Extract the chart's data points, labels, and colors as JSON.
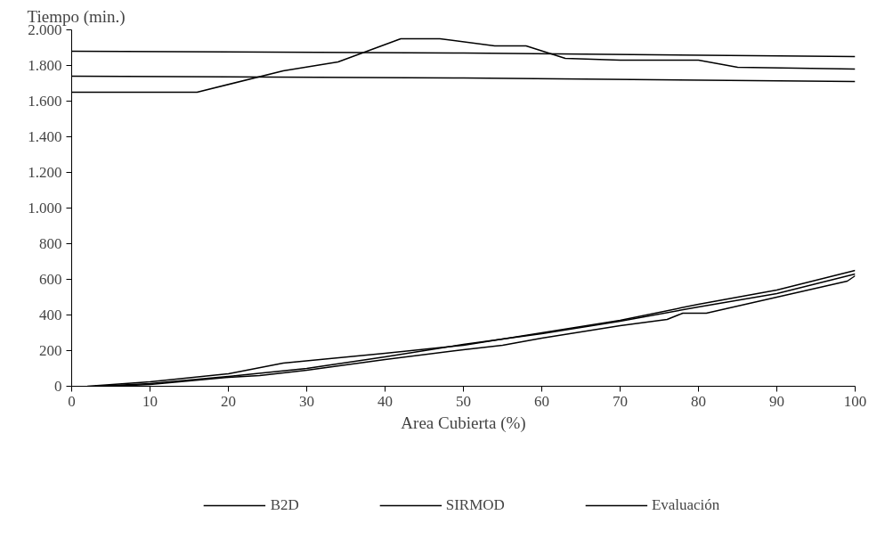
{
  "chart_data": {
    "type": "line",
    "ylabel": "Tiempo (min.)",
    "xlabel": "Area Cubierta (%)",
    "xlim": [
      0,
      100
    ],
    "xticks": [
      0,
      10,
      20,
      30,
      40,
      50,
      60,
      70,
      80,
      90,
      100
    ],
    "ylim": [
      0,
      2000
    ],
    "yticks": [
      0,
      {
        "value": 200,
        "label": "200"
      },
      400,
      600,
      800,
      {
        "value": 1000,
        "label": "1.000"
      },
      {
        "value": 1200,
        "label": "1.200"
      },
      {
        "value": 1400,
        "label": "1.400"
      },
      {
        "value": 1600,
        "label": "1.600"
      },
      {
        "value": 1800,
        "label": "1.800"
      },
      {
        "value": 2000,
        "label": "2.000"
      }
    ],
    "grid": false,
    "legend": "bottom",
    "marker": "none",
    "line_style": "solid",
    "series": [
      {
        "name": "B2D",
        "color": "#000000",
        "x": [
          2,
          10,
          20,
          27,
          40,
          50,
          60,
          70,
          80,
          90,
          100
        ],
        "values": [
          0,
          25,
          70,
          130,
          185,
          230,
          300,
          370,
          460,
          540,
          650
        ]
      },
      {
        "name": "SIRMOD",
        "color": "#000000",
        "x": [
          3,
          10,
          20,
          30,
          40,
          50,
          60,
          70,
          80,
          90,
          100
        ],
        "values": [
          0,
          15,
          55,
          100,
          165,
          235,
          295,
          365,
          445,
          520,
          630
        ]
      },
      {
        "name": "Evaluación",
        "color": "#000000",
        "x": [
          5,
          10,
          20,
          24,
          30,
          40,
          50,
          55,
          60,
          70,
          76,
          78,
          81,
          90,
          99,
          100
        ],
        "values": [
          0,
          10,
          50,
          60,
          90,
          150,
          205,
          230,
          270,
          340,
          375,
          410,
          410,
          500,
          590,
          620
        ]
      },
      {
        "color": "#000000",
        "x": [
          0,
          50,
          100
        ],
        "values": [
          1880,
          1870,
          1850
        ]
      },
      {
        "color": "#000000",
        "x": [
          0,
          50,
          100
        ],
        "values": [
          1740,
          1730,
          1710
        ]
      },
      {
        "color": "#000000",
        "x": [
          0,
          16,
          27,
          34,
          42,
          47,
          54,
          58,
          63,
          70,
          80,
          85,
          100
        ],
        "values": [
          1650,
          1650,
          1770,
          1820,
          1950,
          1950,
          1910,
          1910,
          1840,
          1830,
          1830,
          1790,
          1780
        ]
      }
    ]
  }
}
